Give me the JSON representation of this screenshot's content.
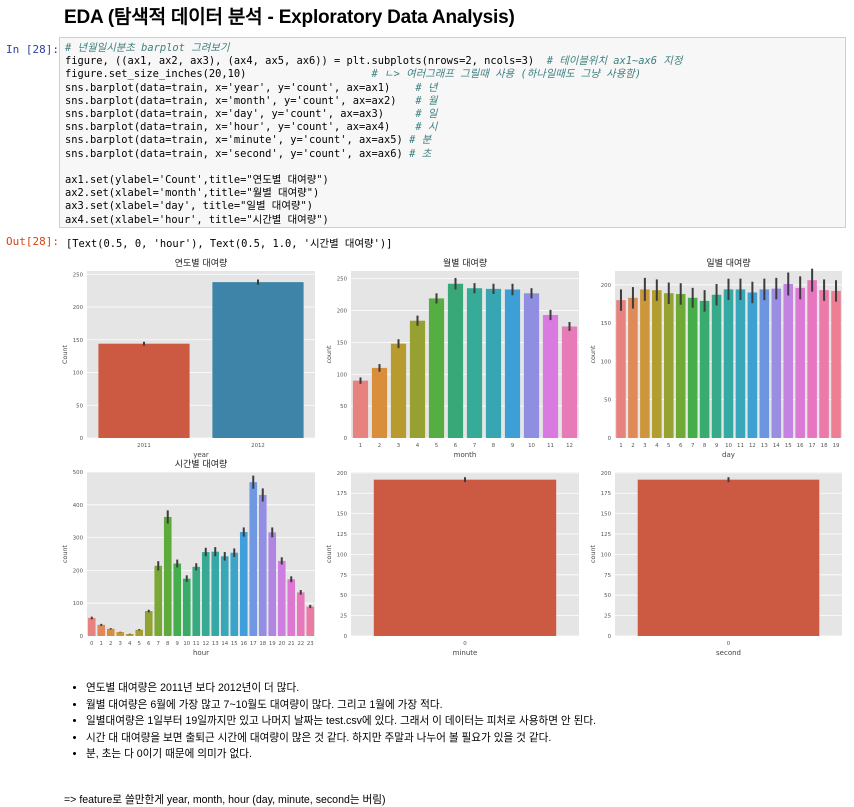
{
  "heading": "EDA (탐색적 데이터 분석 - Exploratory Data Analysis)",
  "input_prompt": "In [28]:",
  "output_prompt": "Out[28]:",
  "code": {
    "l1_comment": "# 년월일시분초 barplot 그려보기",
    "l2": "figure, ((ax1, ax2, ax3), (ax4, ax5, ax6)) = plt.subplots(nrows=2, ncols=3)",
    "l2_comment": "# 테이블위치 ax1~ax6 지정",
    "l3": "figure.set_size_inches(20,10)",
    "l3_comment": "# ㄴ> 여러그래프 그릴때 사용 (하나일때도 그냥 사용함)",
    "l4": "sns.barplot(data=train, x='year', y='count', ax=ax1)",
    "l4_comment": "# 년",
    "l5": "sns.barplot(data=train, x='month', y='count', ax=ax2)",
    "l5_comment": "# 월",
    "l6": "sns.barplot(data=train, x='day', y='count', ax=ax3)",
    "l6_comment": "# 일",
    "l7": "sns.barplot(data=train, x='hour', y='count', ax=ax4)",
    "l7_comment": "# 시",
    "l8": "sns.barplot(data=train, x='minute', y='count', ax=ax5)",
    "l8_comment": "# 분",
    "l9": "sns.barplot(data=train, x='second', y='count', ax=ax6)",
    "l9_comment": "# 초",
    "l10": "ax1.set(ylabel='Count',title=\"연도별 대여량\")",
    "l11": "ax2.set(xlabel='month',title=\"월별 대여량\")",
    "l12": "ax3.set(xlabel='day', title=\"일별 대여량\")",
    "l13": "ax4.set(xlabel='hour', title=\"시간별 대여량\")"
  },
  "output_text": "[Text(0.5, 0, 'hour'), Text(0.5, 1.0, '시간별 대여량')]",
  "chart_data": [
    {
      "type": "bar",
      "title": "연도별 대여량",
      "xlabel": "year",
      "ylabel": "Count",
      "categories": [
        "2011",
        "2012"
      ],
      "values": [
        144,
        238
      ],
      "errors": [
        3,
        4
      ],
      "colors": [
        "#cc5a43",
        "#3e84a8"
      ],
      "ylim": [
        0,
        255
      ],
      "yticks": [
        0,
        50,
        100,
        150,
        200,
        250
      ]
    },
    {
      "type": "bar",
      "title": "월별 대여량",
      "xlabel": "month",
      "ylabel": "count",
      "categories": [
        "1",
        "2",
        "3",
        "4",
        "5",
        "6",
        "7",
        "8",
        "9",
        "10",
        "11",
        "12"
      ],
      "values": [
        90,
        110,
        148,
        184,
        219,
        242,
        235,
        234,
        233,
        227,
        193,
        175
      ],
      "errors": [
        5,
        6,
        7,
        8,
        8,
        9,
        8,
        8,
        9,
        8,
        8,
        7
      ],
      "colors": [
        "#e8827e",
        "#d98e3c",
        "#b89b2e",
        "#96a132",
        "#56ad42",
        "#39a879",
        "#36ab98",
        "#38a6b2",
        "#3e9ed6",
        "#8f8ee0",
        "#d87ae0",
        "#e77bb7"
      ],
      "ylim": [
        0,
        262
      ],
      "yticks": [
        0,
        50,
        100,
        150,
        200,
        250
      ]
    },
    {
      "type": "bar",
      "title": "일별 대여량",
      "xlabel": "day",
      "ylabel": "count",
      "categories": [
        "1",
        "2",
        "3",
        "4",
        "5",
        "6",
        "7",
        "8",
        "9",
        "10",
        "11",
        "12",
        "13",
        "14",
        "15",
        "16",
        "17",
        "18",
        "19"
      ],
      "values": [
        180,
        183,
        194,
        193,
        189,
        188,
        183,
        179,
        187,
        194,
        194,
        190,
        194,
        195,
        201,
        196,
        206,
        193,
        192
      ],
      "errors": [
        14,
        14,
        15,
        14,
        14,
        14,
        13,
        14,
        14,
        14,
        14,
        14,
        14,
        14,
        15,
        15,
        15,
        14,
        14
      ],
      "colors": [
        "#e8827e",
        "#df8a58",
        "#cc963a",
        "#b29d2f",
        "#97a232",
        "#6fa936",
        "#45ad4a",
        "#38ab6f",
        "#36aa8b",
        "#36a9a3",
        "#39a7b9",
        "#3da2d1",
        "#6c97e0",
        "#9a8ee2",
        "#c283e2",
        "#dc79d4",
        "#e775c0",
        "#eb7aa8",
        "#ec7f92"
      ],
      "ylim": [
        0,
        218
      ],
      "yticks": [
        0,
        50,
        100,
        150,
        200
      ]
    },
    {
      "type": "bar",
      "title": "시간별 대여량",
      "xlabel": "hour",
      "ylabel": "count",
      "categories": [
        "0",
        "1",
        "2",
        "3",
        "4",
        "5",
        "6",
        "7",
        "8",
        "9",
        "10",
        "11",
        "12",
        "13",
        "14",
        "15",
        "16",
        "17",
        "18",
        "19",
        "20",
        "21",
        "22",
        "23"
      ],
      "values": [
        55,
        34,
        22,
        12,
        6,
        19,
        76,
        214,
        363,
        221,
        175,
        211,
        256,
        257,
        243,
        254,
        317,
        469,
        430,
        316,
        229,
        173,
        133,
        90
      ],
      "errors": [
        4,
        3,
        2,
        1,
        1,
        2,
        4,
        14,
        20,
        12,
        10,
        11,
        13,
        14,
        13,
        13,
        14,
        20,
        20,
        15,
        11,
        9,
        7,
        5
      ],
      "colors": [
        "#e8827e",
        "#e08859",
        "#d58f40",
        "#c79735",
        "#b79b2f",
        "#a69f31",
        "#92a232",
        "#7aa735",
        "#5eab3c",
        "#44ae4d",
        "#38ac67",
        "#37ab7f",
        "#36aa93",
        "#36a9a6",
        "#38a8b8",
        "#3ba5c9",
        "#3f9fdb",
        "#6f97e2",
        "#918ee3",
        "#b186e2",
        "#cd7ee0",
        "#de77d2",
        "#e778bd",
        "#ea7ca4"
      ],
      "ylim": [
        0,
        500
      ],
      "yticks": [
        0,
        100,
        200,
        300,
        400,
        500
      ]
    },
    {
      "type": "bar",
      "title": "",
      "xlabel": "minute",
      "ylabel": "count",
      "categories": [
        "0"
      ],
      "values": [
        191.6
      ],
      "errors": [
        3
      ],
      "colors": [
        "#cc5a43"
      ],
      "ylim": [
        0,
        201
      ],
      "yticks": [
        0,
        25,
        50,
        75,
        100,
        125,
        150,
        175,
        200
      ]
    },
    {
      "type": "bar",
      "title": "",
      "xlabel": "second",
      "ylabel": "count",
      "categories": [
        "0"
      ],
      "values": [
        191.6
      ],
      "errors": [
        3
      ],
      "colors": [
        "#cc5a43"
      ],
      "ylim": [
        0,
        201
      ],
      "yticks": [
        0,
        25,
        50,
        75,
        100,
        125,
        150,
        175,
        200
      ]
    }
  ],
  "bullets": [
    "연도별 대여량은 2011년 보다 2012년이 더 많다.",
    "월별 대여량은 6월에 가장 많고 7~10월도 대여량이 많다. 그리고 1월에 가장 적다.",
    "일별대여량은 1일부터 19일까지만 있고 나머지 날짜는 test.csv에 있다. 그래서 이 데이터는 피처로 사용하면 안 된다.",
    "시간 대 대여량을 보면 출퇴근 시간에 대여량이 많은 것 같다. 하지만 주말과 나누어 볼 필요가 있을 것 같다.",
    "분, 초는 다 0이기 때문에 의미가 없다."
  ],
  "conclusion": "=> feature로 쓸만한게 year, month, hour (day, minute, second는 버림)"
}
